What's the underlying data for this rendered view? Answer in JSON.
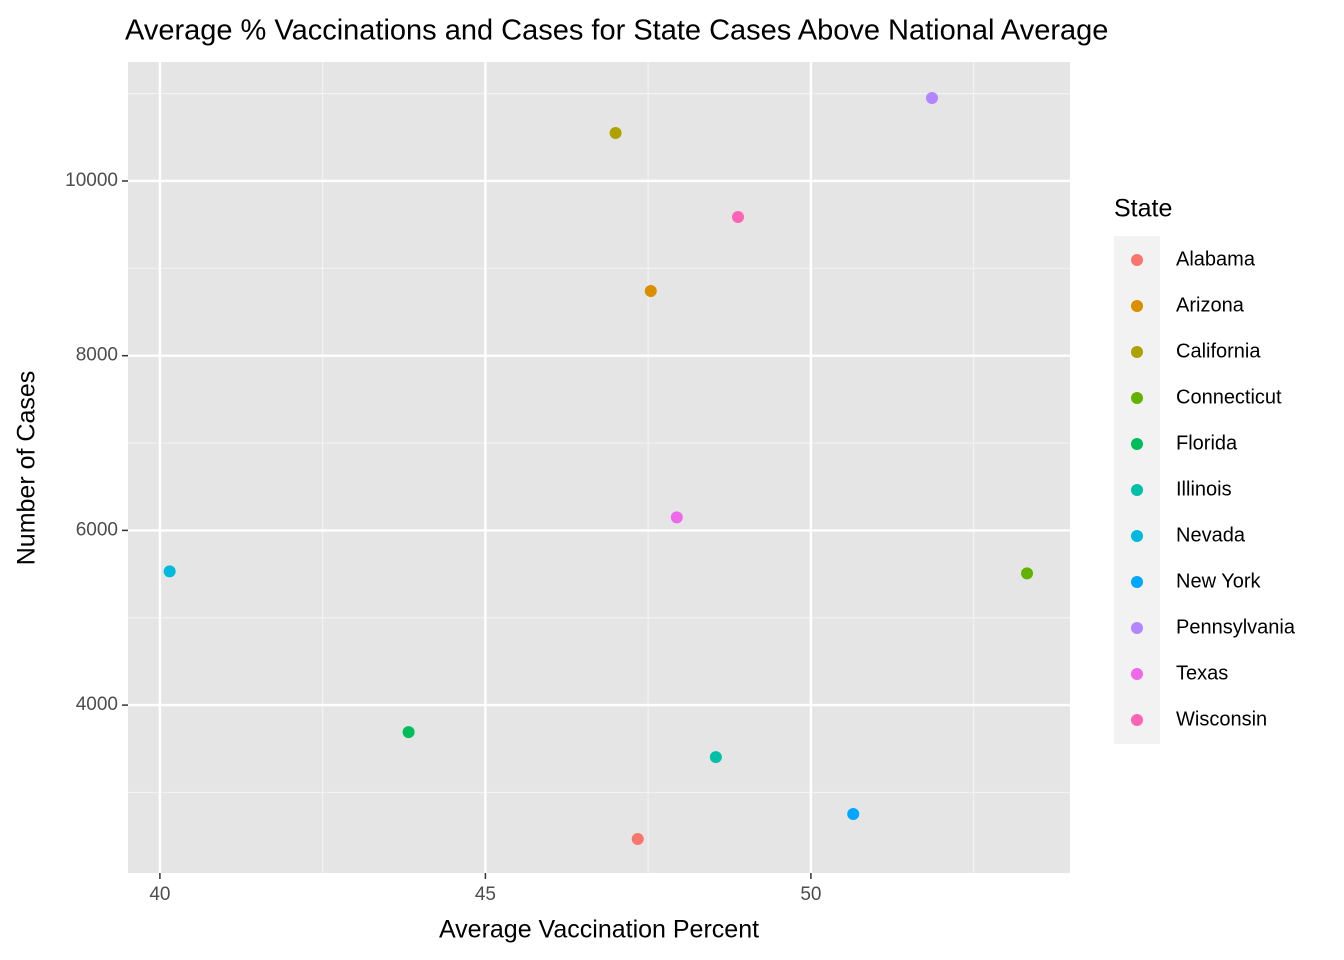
{
  "chart_data": {
    "type": "scatter",
    "title": "Average % Vaccinations and Cases for State Cases Above National Average",
    "x_label": "Average Vaccination Percent",
    "y_label": "Number of Cases",
    "legend_title": "State",
    "legend_position": "right",
    "grid": true,
    "xlim": [
      39.51,
      53.98
    ],
    "ylim": [
      2078,
      11362
    ],
    "xticks": [
      40,
      45,
      50
    ],
    "yticks": [
      4000,
      6000,
      8000,
      10000
    ],
    "x_minor_breaks": [
      42.5,
      47.5,
      52.5
    ],
    "y_minor_breaks": [
      3000,
      5000,
      7000,
      9000,
      11000
    ],
    "series": [
      {
        "name": "Alabama",
        "color": "#F8766D",
        "x": [
          47.34
        ],
        "values": [
          2467
        ]
      },
      {
        "name": "Arizona",
        "color": "#DB8E00",
        "x": [
          47.54
        ],
        "values": [
          8741
        ]
      },
      {
        "name": "California",
        "color": "#AEA200",
        "x": [
          47.0
        ],
        "values": [
          10549
        ]
      },
      {
        "name": "Connecticut",
        "color": "#64B200",
        "x": [
          53.32
        ],
        "values": [
          5508
        ]
      },
      {
        "name": "Florida",
        "color": "#00BD5C",
        "x": [
          43.82
        ],
        "values": [
          3691
        ]
      },
      {
        "name": "Illinois",
        "color": "#00C1A7",
        "x": [
          48.54
        ],
        "values": [
          3405
        ]
      },
      {
        "name": "Nevada",
        "color": "#00BADE",
        "x": [
          40.15
        ],
        "values": [
          5531
        ]
      },
      {
        "name": "New York",
        "color": "#00A6FF",
        "x": [
          50.65
        ],
        "values": [
          2753
        ]
      },
      {
        "name": "Pennsylvania",
        "color": "#B385FF",
        "x": [
          51.86
        ],
        "values": [
          10950
        ]
      },
      {
        "name": "Texas",
        "color": "#EF67EB",
        "x": [
          47.94
        ],
        "values": [
          6149
        ]
      },
      {
        "name": "Wisconsin",
        "color": "#FF63B6",
        "x": [
          48.88
        ],
        "values": [
          9588
        ]
      }
    ]
  }
}
